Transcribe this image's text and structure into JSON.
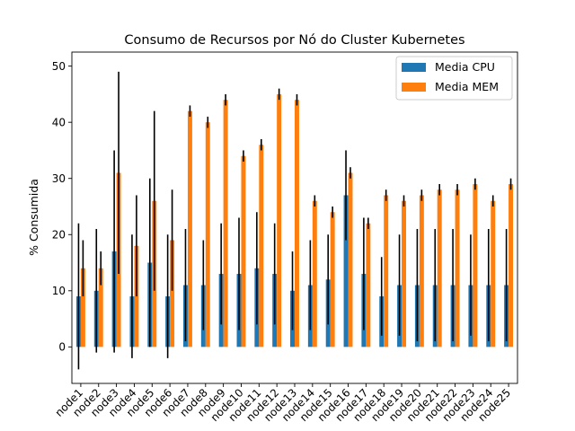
{
  "chart_data": {
    "type": "bar",
    "title": "Consumo de Recursos por Nó do Cluster Kubernetes",
    "xlabel": "",
    "ylabel": "% Consumida",
    "ylim": [
      -6.5,
      52.5
    ],
    "yticks": [
      0,
      10,
      20,
      30,
      40,
      50
    ],
    "legend_position": "top-right",
    "grid": false,
    "categories": [
      "node1",
      "node2",
      "node3",
      "node4",
      "node5",
      "node6",
      "node7",
      "node8",
      "node9",
      "node10",
      "node11",
      "node12",
      "node13",
      "node14",
      "node15",
      "node16",
      "node17",
      "node18",
      "node19",
      "node20",
      "node21",
      "node22",
      "node23",
      "node24",
      "node25"
    ],
    "series": [
      {
        "name": "Media CPU",
        "color": "#1f77b4",
        "values": [
          9,
          10,
          17,
          9,
          15,
          9,
          11,
          11,
          13,
          13,
          14,
          13,
          10,
          11,
          12,
          27,
          13,
          9,
          11,
          11,
          11,
          11,
          11,
          11,
          11
        ],
        "err_low": [
          -4,
          -1,
          -1,
          -2,
          0,
          -2,
          1,
          3,
          4,
          3,
          4,
          4,
          3,
          3,
          4,
          19,
          3,
          2,
          2,
          1,
          1,
          1,
          2,
          1,
          1
        ],
        "err_high": [
          22,
          21,
          35,
          20,
          30,
          20,
          21,
          19,
          22,
          23,
          24,
          22,
          17,
          19,
          20,
          35,
          23,
          16,
          20,
          21,
          21,
          21,
          20,
          21,
          21
        ]
      },
      {
        "name": "Media MEM",
        "color": "#ff7f0e",
        "values": [
          14,
          14,
          31,
          18,
          26,
          19,
          42,
          40,
          44,
          34,
          36,
          45,
          44,
          26,
          24,
          31,
          22,
          27,
          26,
          27,
          28,
          28,
          29,
          26,
          29
        ],
        "err_low": [
          9,
          11,
          13,
          9,
          10,
          10,
          41,
          39,
          43,
          33,
          35,
          44,
          43,
          25,
          23,
          30,
          21,
          26,
          25,
          26,
          27,
          27,
          28,
          25,
          28
        ],
        "err_high": [
          19,
          17,
          49,
          27,
          42,
          28,
          43,
          41,
          45,
          35,
          37,
          46,
          45,
          27,
          25,
          32,
          23,
          28,
          27,
          28,
          29,
          29,
          30,
          27,
          30
        ]
      }
    ]
  }
}
